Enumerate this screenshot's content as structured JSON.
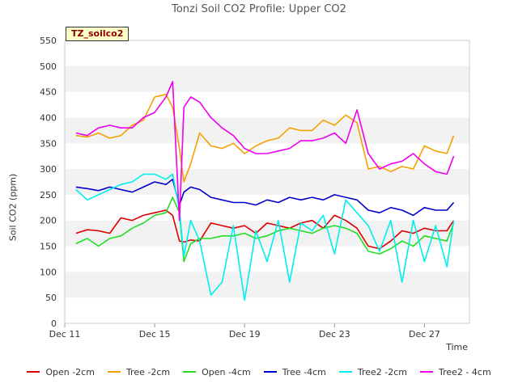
{
  "chart_data": {
    "type": "line",
    "title": "Tonzi Soil CO2 Profile: Upper CO2",
    "xlabel": "Time",
    "ylabel": "Soil CO2 (ppm)",
    "tag": "TZ_soilco2",
    "ylim": [
      0,
      550
    ],
    "yticks": [
      0,
      50,
      100,
      150,
      200,
      250,
      300,
      350,
      400,
      450,
      500,
      550
    ],
    "xlim_days": [
      11,
      29
    ],
    "xticks": [
      {
        "label": "Dec 11",
        "day": 11
      },
      {
        "label": "Dec 15",
        "day": 15
      },
      {
        "label": "Dec 19",
        "day": 19
      },
      {
        "label": "Dec 23",
        "day": 23
      },
      {
        "label": "Dec 27",
        "day": 27
      }
    ],
    "grid": "horizontal bands",
    "legend_position": "bottom",
    "x": [
      11.5,
      12.0,
      12.5,
      13.0,
      13.5,
      14.0,
      14.5,
      15.0,
      15.5,
      15.8,
      16.1,
      16.3,
      16.6,
      17.0,
      17.5,
      18.0,
      18.5,
      19.0,
      19.5,
      20.0,
      20.5,
      21.0,
      21.5,
      22.0,
      22.5,
      23.0,
      23.5,
      24.0,
      24.5,
      25.0,
      25.5,
      26.0,
      26.5,
      27.0,
      27.5,
      28.0,
      28.3
    ],
    "series": [
      {
        "name": "Open -2cm",
        "color": "#dd0000",
        "values": [
          175,
          182,
          180,
          175,
          205,
          200,
          210,
          215,
          220,
          210,
          160,
          158,
          162,
          160,
          195,
          190,
          185,
          190,
          175,
          195,
          190,
          185,
          195,
          200,
          185,
          210,
          200,
          185,
          150,
          145,
          160,
          180,
          175,
          185,
          180,
          180,
          200
        ]
      },
      {
        "name": "Tree -2cm",
        "color": "#f5a000",
        "values": [
          365,
          362,
          370,
          360,
          365,
          385,
          395,
          440,
          445,
          420,
          340,
          275,
          310,
          370,
          345,
          340,
          350,
          330,
          345,
          355,
          360,
          380,
          375,
          375,
          395,
          385,
          405,
          390,
          300,
          305,
          295,
          305,
          300,
          345,
          335,
          330,
          365
        ]
      },
      {
        "name": "Open -4cm",
        "color": "#22dd22",
        "values": [
          155,
          165,
          150,
          165,
          170,
          185,
          195,
          210,
          215,
          245,
          215,
          120,
          155,
          165,
          165,
          170,
          170,
          175,
          165,
          170,
          180,
          185,
          180,
          175,
          185,
          190,
          185,
          175,
          140,
          135,
          145,
          160,
          150,
          170,
          165,
          160,
          195
        ]
      },
      {
        "name": "Tree -4cm",
        "color": "#0000cc",
        "values": [
          265,
          262,
          258,
          265,
          260,
          255,
          265,
          275,
          270,
          280,
          230,
          255,
          265,
          260,
          245,
          240,
          235,
          235,
          230,
          240,
          235,
          245,
          240,
          245,
          240,
          250,
          245,
          240,
          220,
          215,
          225,
          220,
          210,
          225,
          220,
          220,
          235
        ]
      },
      {
        "name": "Tree2 -2cm",
        "color": "#00eeee",
        "values": [
          260,
          240,
          250,
          260,
          270,
          275,
          290,
          290,
          280,
          290,
          220,
          130,
          200,
          160,
          55,
          80,
          190,
          45,
          180,
          120,
          200,
          80,
          195,
          180,
          210,
          135,
          240,
          215,
          190,
          140,
          200,
          80,
          200,
          120,
          190,
          110,
          200
        ]
      },
      {
        "name": "Tree2 - 4cm",
        "color": "#ee00ee",
        "values": [
          370,
          365,
          380,
          385,
          380,
          380,
          400,
          410,
          440,
          470,
          200,
          420,
          440,
          430,
          400,
          380,
          365,
          340,
          330,
          330,
          335,
          340,
          355,
          355,
          360,
          370,
          350,
          415,
          330,
          300,
          310,
          315,
          330,
          310,
          295,
          290,
          325
        ]
      }
    ]
  }
}
